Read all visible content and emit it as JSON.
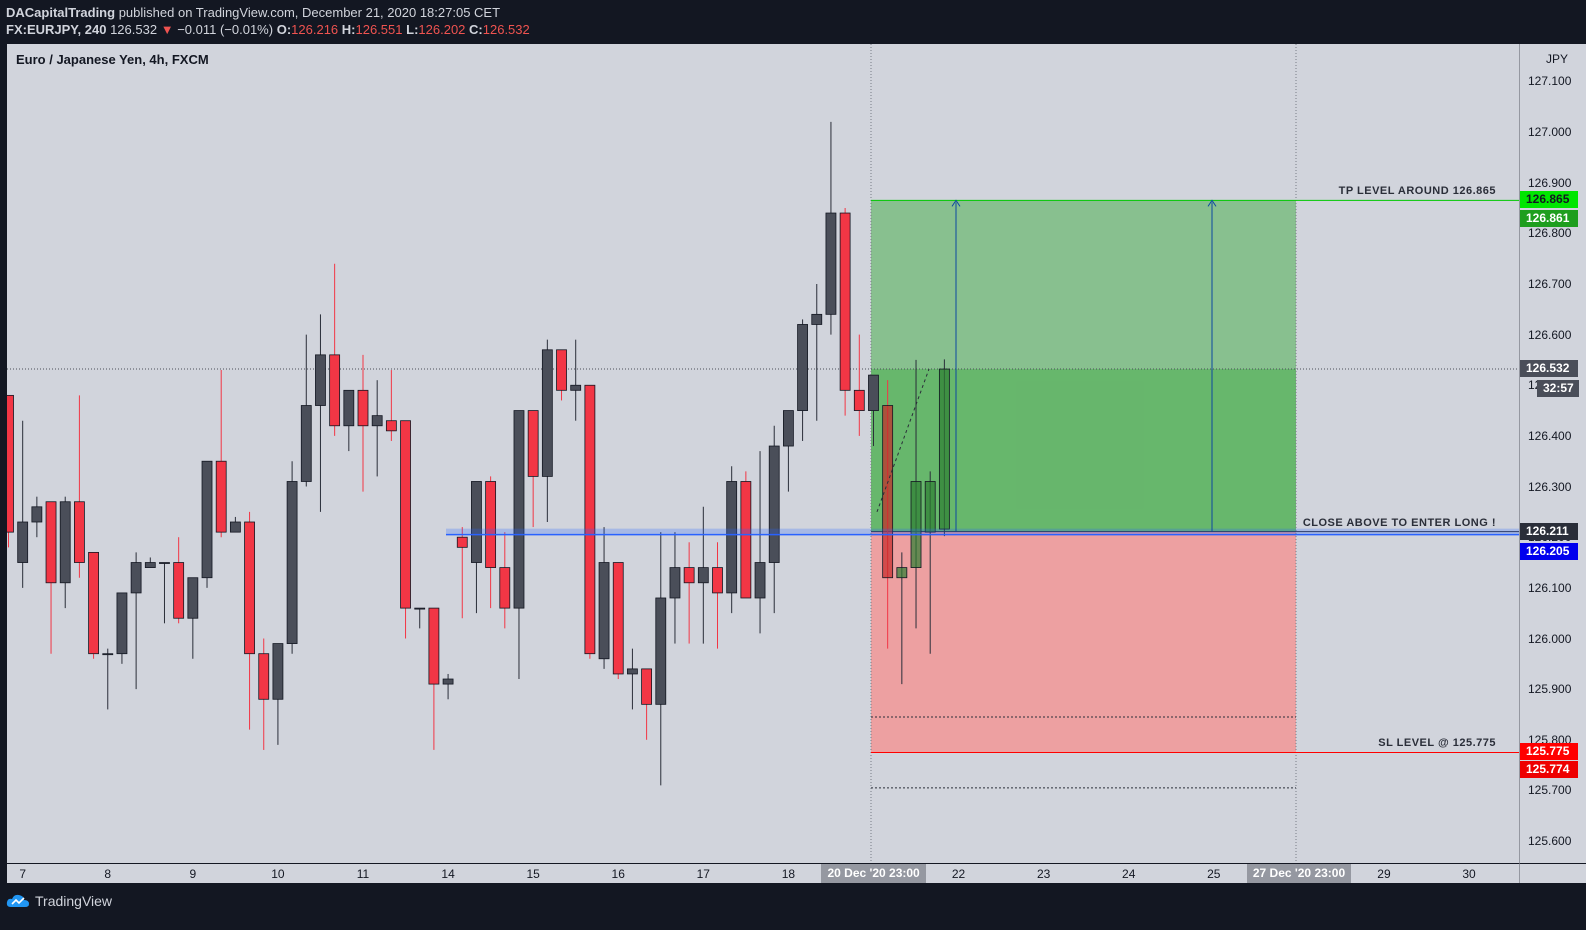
{
  "header": {
    "publisher": "DACapitalTrading",
    "published_text": "published on TradingView.com, December 21, 2020 18:27:05 CET",
    "symbol": "FX:EURJPY, 240",
    "last": "126.532",
    "change_arrow": "▼",
    "change": "−0.011 (−0.01%)",
    "o_label": "O:",
    "o_val": "126.216",
    "h_label": "H:",
    "h_val": "126.551",
    "l_label": "L:",
    "l_val": "126.202",
    "c_label": "C:",
    "c_val": "126.532"
  },
  "chart_title": "Euro / Japanese Yen, 4h, FXCM",
  "footer": {
    "brand": "TradingView"
  },
  "colors": {
    "bg": "#d1d4dc",
    "up": "#4a4e59",
    "down": "#f23645",
    "profit_zone": "#4caf50",
    "loss_zone": "#ef9a9a",
    "entry_line": "#2962ff",
    "tp_tag": "#00e600",
    "sl_tag": "#ff0000"
  },
  "chart_data": {
    "type": "candlestick",
    "title": "Euro / Japanese Yen, 4h, FXCM",
    "currency": "JPY",
    "ylim": [
      125.55,
      127.15
    ],
    "y_ticks": [
      "127.100",
      "127.000",
      "126.900",
      "126.800",
      "126.700",
      "126.600",
      "126.500",
      "126.400",
      "126.300",
      "126.200",
      "126.100",
      "126.000",
      "125.900",
      "125.800",
      "125.700",
      "125.600"
    ],
    "x_ticks": [
      {
        "label": "7",
        "i": 1
      },
      {
        "label": "8",
        "i": 7
      },
      {
        "label": "9",
        "i": 13
      },
      {
        "label": "10",
        "i": 19
      },
      {
        "label": "11",
        "i": 25
      },
      {
        "label": "14",
        "i": 31
      },
      {
        "label": "15",
        "i": 37
      },
      {
        "label": "16",
        "i": 43
      },
      {
        "label": "17",
        "i": 49
      },
      {
        "label": "18",
        "i": 55
      },
      {
        "label": "22",
        "i": 67
      },
      {
        "label": "23",
        "i": 73
      },
      {
        "label": "24",
        "i": 79
      },
      {
        "label": "25",
        "i": 85
      },
      {
        "label": "29",
        "i": 97
      },
      {
        "label": "30",
        "i": 103
      }
    ],
    "x_highlight_labels": [
      {
        "label": "20 Dec '20  23:00",
        "i": 61
      },
      {
        "label": "27 Dec '20  23:00",
        "i": 91
      }
    ],
    "candles": [
      {
        "o": 126.48,
        "h": 126.48,
        "l": 126.18,
        "c": 126.21
      },
      {
        "o": 126.15,
        "h": 126.43,
        "l": 126.1,
        "c": 126.23
      },
      {
        "o": 126.23,
        "h": 126.28,
        "l": 126.2,
        "c": 126.26
      },
      {
        "o": 126.27,
        "h": 126.27,
        "l": 125.97,
        "c": 126.11
      },
      {
        "o": 126.11,
        "h": 126.28,
        "l": 126.06,
        "c": 126.27
      },
      {
        "o": 126.27,
        "h": 126.48,
        "l": 126.12,
        "c": 126.15
      },
      {
        "o": 126.17,
        "h": 126.17,
        "l": 125.96,
        "c": 125.97
      },
      {
        "o": 125.97,
        "h": 125.98,
        "l": 125.86,
        "c": 125.97
      },
      {
        "o": 125.97,
        "h": 126.09,
        "l": 125.95,
        "c": 126.09
      },
      {
        "o": 126.09,
        "h": 126.17,
        "l": 125.9,
        "c": 126.15
      },
      {
        "o": 126.14,
        "h": 126.16,
        "l": 126.14,
        "c": 126.15
      },
      {
        "o": 126.15,
        "h": 126.15,
        "l": 126.03,
        "c": 126.15
      },
      {
        "o": 126.15,
        "h": 126.2,
        "l": 126.03,
        "c": 126.04
      },
      {
        "o": 126.04,
        "h": 126.12,
        "l": 125.96,
        "c": 126.12
      },
      {
        "o": 126.12,
        "h": 126.35,
        "l": 126.1,
        "c": 126.35
      },
      {
        "o": 126.35,
        "h": 126.53,
        "l": 126.2,
        "c": 126.21
      },
      {
        "o": 126.21,
        "h": 126.24,
        "l": 126.21,
        "c": 126.23
      },
      {
        "o": 126.23,
        "h": 126.25,
        "l": 125.82,
        "c": 125.97
      },
      {
        "o": 125.97,
        "h": 126.0,
        "l": 125.78,
        "c": 125.88
      },
      {
        "o": 125.88,
        "h": 125.98,
        "l": 125.79,
        "c": 125.99
      },
      {
        "o": 125.99,
        "h": 126.35,
        "l": 125.97,
        "c": 126.31
      },
      {
        "o": 126.31,
        "h": 126.6,
        "l": 126.3,
        "c": 126.46
      },
      {
        "o": 126.46,
        "h": 126.64,
        "l": 126.25,
        "c": 126.56
      },
      {
        "o": 126.56,
        "h": 126.74,
        "l": 126.4,
        "c": 126.42
      },
      {
        "o": 126.42,
        "h": 126.48,
        "l": 126.37,
        "c": 126.49
      },
      {
        "o": 126.49,
        "h": 126.56,
        "l": 126.29,
        "c": 126.42
      },
      {
        "o": 126.42,
        "h": 126.51,
        "l": 126.32,
        "c": 126.44
      },
      {
        "o": 126.43,
        "h": 126.53,
        "l": 126.39,
        "c": 126.41
      },
      {
        "o": 126.43,
        "h": 126.43,
        "l": 126.0,
        "c": 126.06
      },
      {
        "o": 126.06,
        "h": 126.06,
        "l": 126.02,
        "c": 126.06
      },
      {
        "o": 126.06,
        "h": 126.06,
        "l": 125.78,
        "c": 125.91
      },
      {
        "o": 125.91,
        "h": 125.93,
        "l": 125.88,
        "c": 125.92
      },
      {
        "o": 126.2,
        "h": 126.22,
        "l": 126.04,
        "c": 126.18
      },
      {
        "o": 126.15,
        "h": 126.31,
        "l": 126.05,
        "c": 126.31
      },
      {
        "o": 126.31,
        "h": 126.32,
        "l": 126.06,
        "c": 126.14
      },
      {
        "o": 126.14,
        "h": 126.21,
        "l": 126.02,
        "c": 126.06
      },
      {
        "o": 126.06,
        "h": 126.45,
        "l": 125.92,
        "c": 126.45
      },
      {
        "o": 126.45,
        "h": 126.45,
        "l": 126.22,
        "c": 126.32
      },
      {
        "o": 126.32,
        "h": 126.59,
        "l": 126.23,
        "c": 126.57
      },
      {
        "o": 126.57,
        "h": 126.57,
        "l": 126.47,
        "c": 126.49
      },
      {
        "o": 126.49,
        "h": 126.59,
        "l": 126.43,
        "c": 126.5
      },
      {
        "o": 126.5,
        "h": 126.5,
        "l": 125.96,
        "c": 125.97
      },
      {
        "o": 125.96,
        "h": 126.22,
        "l": 125.94,
        "c": 126.15
      },
      {
        "o": 126.15,
        "h": 126.15,
        "l": 125.92,
        "c": 125.93
      },
      {
        "o": 125.93,
        "h": 125.98,
        "l": 125.86,
        "c": 125.94
      },
      {
        "o": 125.94,
        "h": 125.94,
        "l": 125.8,
        "c": 125.87
      },
      {
        "o": 125.87,
        "h": 126.21,
        "l": 125.71,
        "c": 126.08
      },
      {
        "o": 126.08,
        "h": 126.21,
        "l": 125.99,
        "c": 126.14
      },
      {
        "o": 126.14,
        "h": 126.19,
        "l": 125.99,
        "c": 126.11
      },
      {
        "o": 126.11,
        "h": 126.26,
        "l": 125.99,
        "c": 126.14
      },
      {
        "o": 126.14,
        "h": 126.19,
        "l": 125.98,
        "c": 126.09
      },
      {
        "o": 126.09,
        "h": 126.34,
        "l": 126.05,
        "c": 126.31
      },
      {
        "o": 126.31,
        "h": 126.33,
        "l": 126.08,
        "c": 126.08
      },
      {
        "o": 126.08,
        "h": 126.37,
        "l": 126.01,
        "c": 126.15
      },
      {
        "o": 126.15,
        "h": 126.42,
        "l": 126.05,
        "c": 126.38
      },
      {
        "o": 126.38,
        "h": 126.45,
        "l": 126.29,
        "c": 126.45
      },
      {
        "o": 126.45,
        "h": 126.63,
        "l": 126.39,
        "c": 126.62
      },
      {
        "o": 126.62,
        "h": 126.7,
        "l": 126.43,
        "c": 126.64
      },
      {
        "o": 126.64,
        "h": 127.02,
        "l": 126.6,
        "c": 126.84
      },
      {
        "o": 126.84,
        "h": 126.85,
        "l": 126.44,
        "c": 126.49
      },
      {
        "o": 126.49,
        "h": 126.6,
        "l": 126.4,
        "c": 126.45
      },
      {
        "o": 126.45,
        "h": 126.52,
        "l": 126.38,
        "c": 126.52
      },
      {
        "o": 126.46,
        "h": 126.51,
        "l": 125.98,
        "c": 126.12
      },
      {
        "o": 126.12,
        "h": 126.17,
        "l": 125.91,
        "c": 126.14
      },
      {
        "o": 126.14,
        "h": 126.55,
        "l": 126.02,
        "c": 126.31
      },
      {
        "o": 126.21,
        "h": 126.33,
        "l": 125.97,
        "c": 126.31
      },
      {
        "o": 126.216,
        "h": 126.551,
        "l": 126.202,
        "c": 126.532
      }
    ],
    "positions": [
      {
        "label": "TP LEVEL AROUND 126.865",
        "price": 126.865
      },
      {
        "label": "CLOSE ABOVE TO ENTER LONG !",
        "price": 126.211
      },
      {
        "label": "SL LEVEL @ 125.775",
        "price": 125.775
      }
    ],
    "entry_line": 126.205,
    "current_price": 126.532,
    "lower_dotted_levels": [
      125.845,
      125.705
    ],
    "price_tags": [
      {
        "text": "126.865",
        "price": 126.865,
        "bg": "#00e600",
        "color": "#131722"
      },
      {
        "text": "126.861",
        "price": 126.861,
        "bg": "#1e9e1e",
        "color": "#ffffff"
      },
      {
        "text": "126.532",
        "price": 126.532,
        "bg": "#4a4e59",
        "color": "#ffffff"
      },
      {
        "text": "32:57",
        "price": 126.495,
        "bg": "#4a4e59",
        "color": "#ffffff"
      },
      {
        "text": "126.211",
        "price": 126.211,
        "bg": "#2a2e39",
        "color": "#ffffff"
      },
      {
        "text": "126.205",
        "price": 126.205,
        "bg": "#0000ee",
        "color": "#ffffff"
      },
      {
        "text": "125.775",
        "price": 125.775,
        "bg": "#ff0000",
        "color": "#ffffff"
      },
      {
        "text": "125.774",
        "price": 125.774,
        "bg": "#ee0000",
        "color": "#ffffff"
      }
    ]
  }
}
